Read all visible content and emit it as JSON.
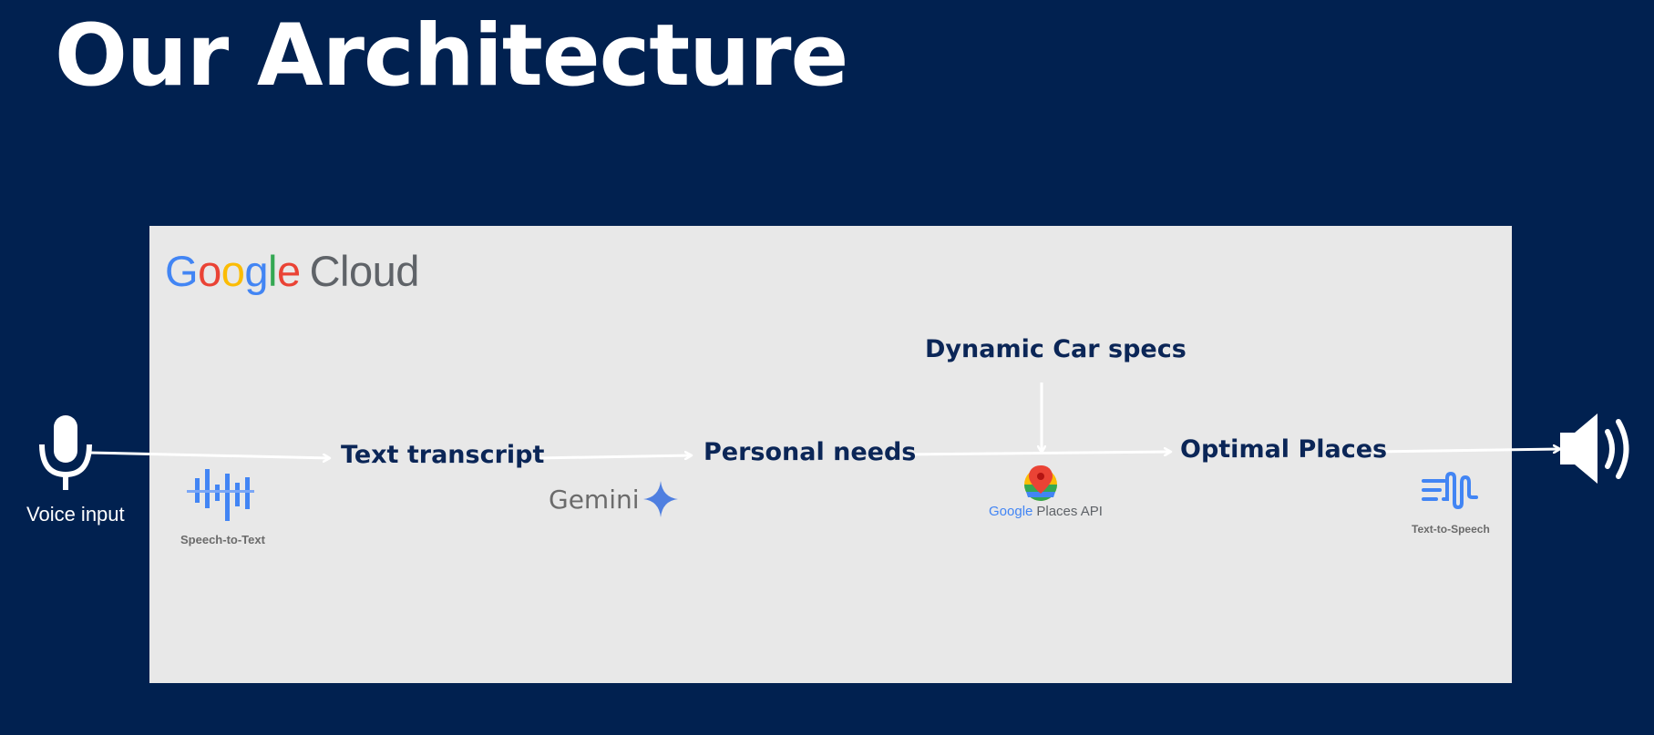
{
  "title": "Our Architecture",
  "cloud_logo": {
    "brand": [
      "G",
      "o",
      "o",
      "g",
      "l",
      "e"
    ],
    "brand_colors": [
      "#4285F4",
      "#EA4335",
      "#FBBC05",
      "#4285F4",
      "#34A853",
      "#EA4335"
    ],
    "product": "Cloud"
  },
  "input": {
    "label": "Voice input",
    "icon": "microphone-icon"
  },
  "nodes": {
    "text_transcript": "Text transcript",
    "personal_needs": "Personal needs",
    "dynamic_car_specs": "Dynamic Car specs",
    "optimal_places": "Optimal Places"
  },
  "services": {
    "speech_to_text": {
      "label": "Speech-to-Text",
      "icon": "speech-to-text-icon"
    },
    "gemini": {
      "label": "Gemini",
      "icon": "gemini-sparkle-icon"
    },
    "places_api": {
      "brand": "Google",
      "label": "Places API",
      "icon": "map-pin-icon"
    },
    "text_to_speech": {
      "label": "Text-to-Speech",
      "icon": "text-to-speech-icon"
    }
  },
  "output": {
    "icon": "speaker-icon"
  },
  "colors": {
    "background": "#012150",
    "panel": "#e8e8e8",
    "node_text": "#0b2657",
    "service_blue": "#4285F4",
    "gemini_blue": "#4f7fe0"
  }
}
